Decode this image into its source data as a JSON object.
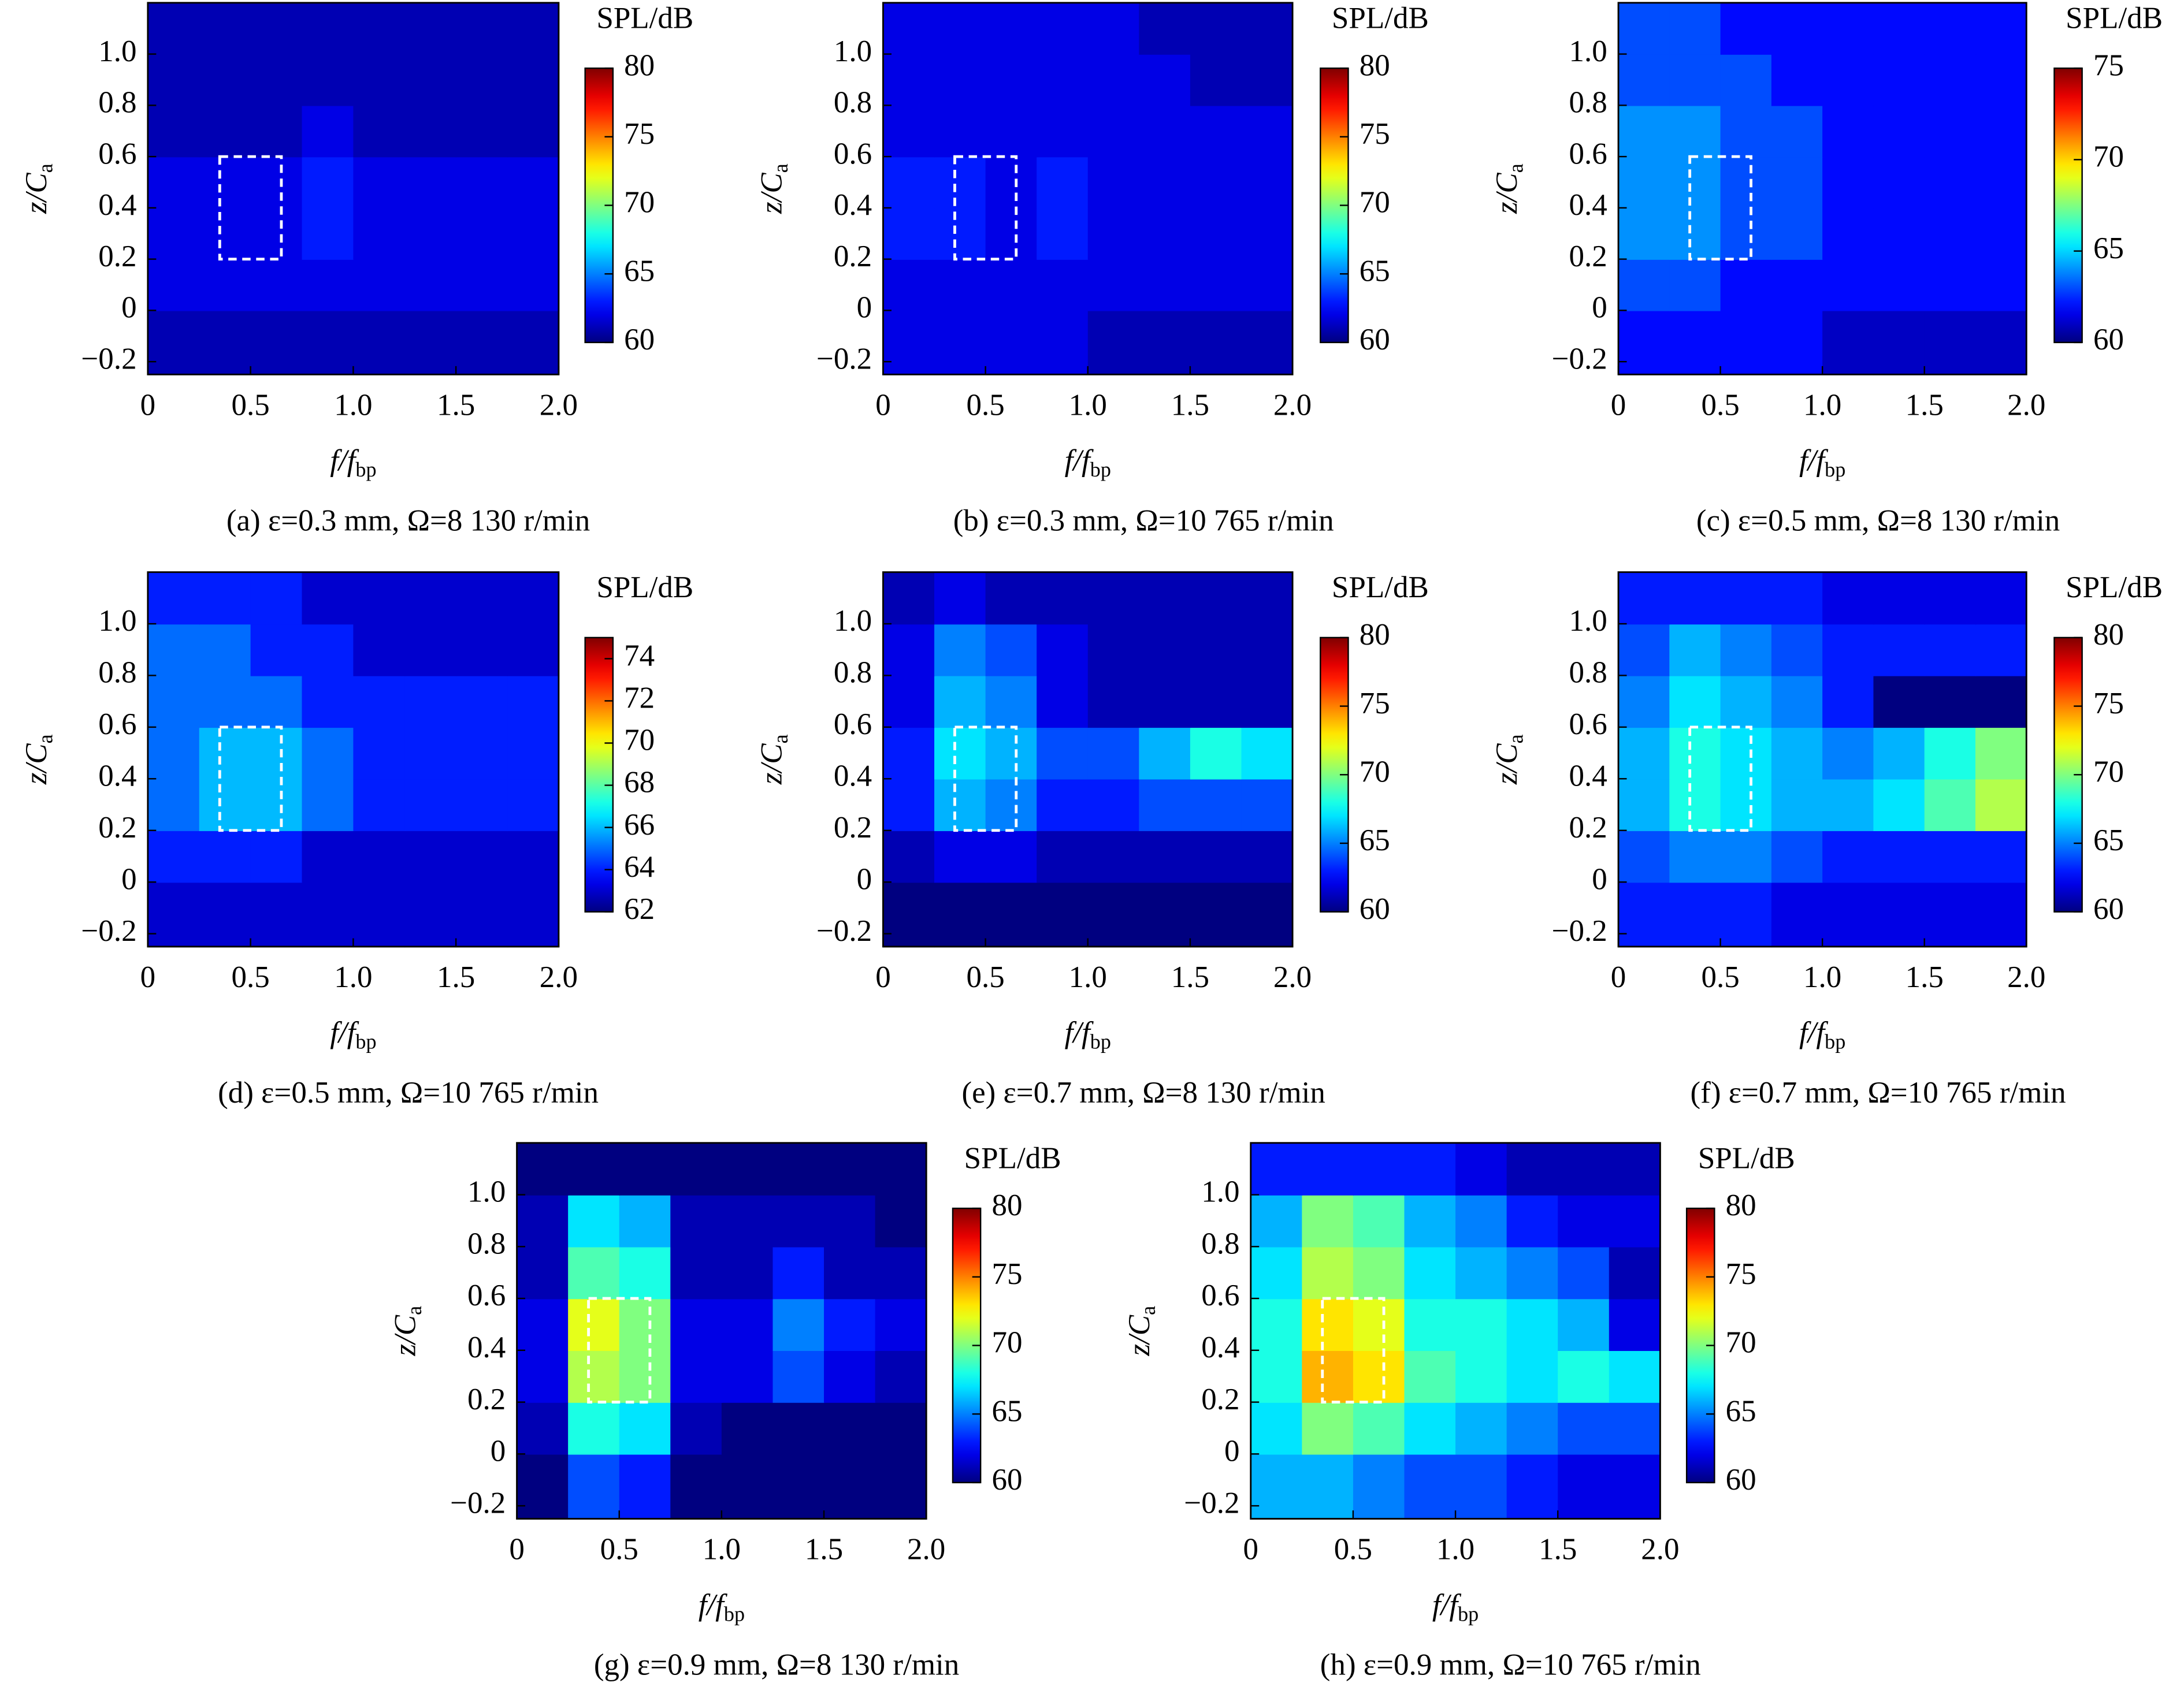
{
  "chart_data": [
    {
      "type": "heatmap",
      "caption": "(a) ε=0.3 mm, Ω=8 130 r/min",
      "colorbar_title": "SPL/dB",
      "xlabel": {
        "main": "f/f",
        "sub": "bp"
      },
      "ylabel": {
        "main": "z/C",
        "sub": "a"
      },
      "xlim": [
        0,
        2
      ],
      "ylim": [
        -0.25,
        1.2
      ],
      "xticks": [
        0,
        0.5,
        {
          "value": 1,
          "label": "1.0"
        },
        1.5,
        {
          "value": 2,
          "label": "2.0"
        }
      ],
      "yticks": [
        {
          "value": -0.2,
          "label": "−0.2"
        },
        0,
        0.2,
        0.4,
        0.6,
        0.8,
        {
          "value": 1,
          "label": "1.0"
        }
      ],
      "clim": [
        60,
        80
      ],
      "cticks": [
        60,
        65,
        70,
        75,
        80
      ],
      "colormap": "jet",
      "highlight": {
        "x": [
          0.35,
          0.65
        ],
        "y": [
          0.2,
          0.6
        ]
      },
      "x": [
        0.125,
        0.375,
        0.625,
        0.875,
        1.125,
        1.375,
        1.625,
        1.875
      ],
      "z": [
        -0.1,
        0.1,
        0.3,
        0.5,
        0.7,
        0.9,
        1.1
      ],
      "values": [
        [
          61,
          61,
          61,
          61,
          61,
          61,
          61,
          61
        ],
        [
          62,
          62,
          62,
          62,
          62,
          62,
          62,
          62
        ],
        [
          62,
          62,
          62,
          63,
          62,
          62,
          62,
          62
        ],
        [
          62,
          62,
          62,
          63,
          62,
          62,
          62,
          62
        ],
        [
          61,
          61,
          61,
          62,
          61,
          61,
          61,
          61
        ],
        [
          61,
          61,
          61,
          61,
          61,
          61,
          61,
          61
        ],
        [
          61,
          61,
          61,
          61,
          61,
          61,
          61,
          61
        ]
      ]
    },
    {
      "type": "heatmap",
      "caption": "(b) ε=0.3 mm, Ω=10 765 r/min",
      "colorbar_title": "SPL/dB",
      "xlabel": {
        "main": "f/f",
        "sub": "bp"
      },
      "ylabel": {
        "main": "z/C",
        "sub": "a"
      },
      "xlim": [
        0,
        2
      ],
      "ylim": [
        -0.25,
        1.2
      ],
      "xticks": [
        0,
        0.5,
        {
          "value": 1,
          "label": "1.0"
        },
        1.5,
        {
          "value": 2,
          "label": "2.0"
        }
      ],
      "yticks": [
        {
          "value": -0.2,
          "label": "−0.2"
        },
        0,
        0.2,
        0.4,
        0.6,
        0.8,
        {
          "value": 1,
          "label": "1.0"
        }
      ],
      "clim": [
        60,
        80
      ],
      "cticks": [
        60,
        65,
        70,
        75,
        80
      ],
      "colormap": "jet",
      "highlight": {
        "x": [
          0.35,
          0.65
        ],
        "y": [
          0.2,
          0.6
        ]
      },
      "x": [
        0.125,
        0.375,
        0.625,
        0.875,
        1.125,
        1.375,
        1.625,
        1.875
      ],
      "z": [
        -0.1,
        0.1,
        0.3,
        0.5,
        0.7,
        0.9,
        1.1
      ],
      "values": [
        [
          62,
          62,
          62,
          62,
          61,
          61,
          61,
          61
        ],
        [
          62,
          62,
          62,
          62,
          62,
          62,
          62,
          62
        ],
        [
          63,
          63,
          62,
          63,
          62,
          62,
          62,
          62
        ],
        [
          63,
          63,
          62,
          63,
          62,
          62,
          62,
          62
        ],
        [
          62,
          62,
          62,
          62,
          62,
          62,
          62,
          62
        ],
        [
          62,
          62,
          62,
          62,
          62,
          62,
          61,
          61
        ],
        [
          62,
          62,
          62,
          62,
          62,
          61,
          61,
          61
        ]
      ]
    },
    {
      "type": "heatmap",
      "caption": "(c) ε=0.5 mm, Ω=8 130 r/min",
      "colorbar_title": "SPL/dB",
      "xlabel": {
        "main": "f/f",
        "sub": "bp"
      },
      "ylabel": {
        "main": "z/C",
        "sub": "a"
      },
      "xlim": [
        0,
        2
      ],
      "ylim": [
        -0.25,
        1.2
      ],
      "xticks": [
        0,
        0.5,
        {
          "value": 1,
          "label": "1.0"
        },
        1.5,
        {
          "value": 2,
          "label": "2.0"
        }
      ],
      "yticks": [
        {
          "value": -0.2,
          "label": "−0.2"
        },
        0,
        0.2,
        0.4,
        0.6,
        0.8,
        {
          "value": 1,
          "label": "1.0"
        }
      ],
      "clim": [
        60,
        75
      ],
      "cticks": [
        60,
        65,
        70,
        75
      ],
      "colormap": "jet",
      "highlight": {
        "x": [
          0.35,
          0.65
        ],
        "y": [
          0.2,
          0.6
        ]
      },
      "x": [
        0.125,
        0.375,
        0.625,
        0.875,
        1.125,
        1.375,
        1.625,
        1.875
      ],
      "z": [
        -0.1,
        0.1,
        0.3,
        0.5,
        0.7,
        0.9,
        1.1
      ],
      "values": [
        [
          62,
          62,
          62,
          62,
          61,
          61,
          61,
          61
        ],
        [
          63,
          63,
          62,
          62,
          62,
          62,
          62,
          62
        ],
        [
          64,
          64,
          63,
          63,
          62,
          62,
          62,
          62
        ],
        [
          64,
          64,
          63,
          63,
          62,
          62,
          62,
          62
        ],
        [
          64,
          64,
          63,
          63,
          62,
          62,
          62,
          62
        ],
        [
          63,
          63,
          63,
          62,
          62,
          62,
          62,
          62
        ],
        [
          63,
          63,
          62,
          62,
          62,
          62,
          62,
          62
        ]
      ]
    },
    {
      "type": "heatmap",
      "caption": "(d) ε=0.5 mm, Ω=10 765 r/min",
      "colorbar_title": "SPL/dB",
      "xlabel": {
        "main": "f/f",
        "sub": "bp"
      },
      "ylabel": {
        "main": "z/C",
        "sub": "a"
      },
      "xlim": [
        0,
        2
      ],
      "ylim": [
        -0.25,
        1.2
      ],
      "xticks": [
        0,
        0.5,
        {
          "value": 1,
          "label": "1.0"
        },
        1.5,
        {
          "value": 2,
          "label": "2.0"
        }
      ],
      "yticks": [
        {
          "value": -0.2,
          "label": "−0.2"
        },
        0,
        0.2,
        0.4,
        0.6,
        0.8,
        {
          "value": 1,
          "label": "1.0"
        }
      ],
      "clim": [
        62,
        75
      ],
      "cticks": [
        62,
        64,
        66,
        68,
        70,
        72,
        74
      ],
      "colormap": "jet",
      "highlight": {
        "x": [
          0.35,
          0.65
        ],
        "y": [
          0.2,
          0.6
        ]
      },
      "x": [
        0.125,
        0.375,
        0.625,
        0.875,
        1.125,
        1.375,
        1.625,
        1.875
      ],
      "z": [
        -0.1,
        0.1,
        0.3,
        0.5,
        0.7,
        0.9,
        1.1
      ],
      "values": [
        [
          63,
          63,
          63,
          63,
          63,
          63,
          63,
          63
        ],
        [
          64,
          64,
          64,
          63,
          63,
          63,
          63,
          63
        ],
        [
          65,
          66,
          66,
          65,
          64,
          64,
          64,
          64
        ],
        [
          65,
          66,
          66,
          65,
          64,
          64,
          64,
          64
        ],
        [
          65,
          65,
          65,
          64,
          64,
          64,
          64,
          64
        ],
        [
          65,
          65,
          64,
          64,
          63,
          63,
          63,
          63
        ],
        [
          64,
          64,
          64,
          63,
          63,
          63,
          63,
          63
        ]
      ]
    },
    {
      "type": "heatmap",
      "caption": "(e) ε=0.7 mm, Ω=8 130 r/min",
      "colorbar_title": "SPL/dB",
      "xlabel": {
        "main": "f/f",
        "sub": "bp"
      },
      "ylabel": {
        "main": "z/C",
        "sub": "a"
      },
      "xlim": [
        0,
        2
      ],
      "ylim": [
        -0.25,
        1.2
      ],
      "xticks": [
        0,
        0.5,
        {
          "value": 1,
          "label": "1.0"
        },
        1.5,
        {
          "value": 2,
          "label": "2.0"
        }
      ],
      "yticks": [
        {
          "value": -0.2,
          "label": "−0.2"
        },
        0,
        0.2,
        0.4,
        0.6,
        0.8,
        {
          "value": 1,
          "label": "1.0"
        }
      ],
      "clim": [
        60,
        80
      ],
      "cticks": [
        60,
        65,
        70,
        75,
        80
      ],
      "colormap": "jet",
      "highlight": {
        "x": [
          0.35,
          0.65
        ],
        "y": [
          0.2,
          0.6
        ]
      },
      "x": [
        0.125,
        0.375,
        0.625,
        0.875,
        1.125,
        1.375,
        1.625,
        1.875
      ],
      "z": [
        -0.1,
        0.1,
        0.3,
        0.5,
        0.7,
        0.9,
        1.1
      ],
      "values": [
        [
          60,
          60,
          60,
          60,
          60,
          60,
          60,
          60
        ],
        [
          61,
          62,
          62,
          61,
          61,
          61,
          61,
          61
        ],
        [
          63,
          66,
          65,
          63,
          63,
          64,
          64,
          64
        ],
        [
          63,
          67,
          66,
          64,
          64,
          66,
          68,
          67
        ],
        [
          62,
          66,
          65,
          62,
          61,
          61,
          61,
          61
        ],
        [
          62,
          65,
          64,
          62,
          61,
          61,
          61,
          61
        ],
        [
          61,
          62,
          61,
          61,
          61,
          61,
          61,
          61
        ]
      ]
    },
    {
      "type": "heatmap",
      "caption": "(f) ε=0.7 mm, Ω=10 765 r/min",
      "colorbar_title": "SPL/dB",
      "xlabel": {
        "main": "f/f",
        "sub": "bp"
      },
      "ylabel": {
        "main": "z/C",
        "sub": "a"
      },
      "xlim": [
        0,
        2
      ],
      "ylim": [
        -0.25,
        1.2
      ],
      "xticks": [
        0,
        0.5,
        {
          "value": 1,
          "label": "1.0"
        },
        1.5,
        {
          "value": 2,
          "label": "2.0"
        }
      ],
      "yticks": [
        {
          "value": -0.2,
          "label": "−0.2"
        },
        0,
        0.2,
        0.4,
        0.6,
        0.8,
        {
          "value": 1,
          "label": "1.0"
        }
      ],
      "clim": [
        60,
        80
      ],
      "cticks": [
        60,
        65,
        70,
        75,
        80
      ],
      "colormap": "jet",
      "highlight": {
        "x": [
          0.35,
          0.65
        ],
        "y": [
          0.2,
          0.6
        ]
      },
      "x": [
        0.125,
        0.375,
        0.625,
        0.875,
        1.125,
        1.375,
        1.625,
        1.875
      ],
      "z": [
        -0.1,
        0.1,
        0.3,
        0.5,
        0.7,
        0.9,
        1.1
      ],
      "values": [
        [
          63,
          63,
          63,
          62,
          62,
          62,
          62,
          62
        ],
        [
          64,
          65,
          65,
          64,
          63,
          63,
          63,
          63
        ],
        [
          66,
          68,
          67,
          66,
          66,
          67,
          69,
          71
        ],
        [
          66,
          68,
          67,
          66,
          65,
          66,
          68,
          70
        ],
        [
          65,
          67,
          66,
          65,
          63,
          60,
          60,
          60
        ],
        [
          64,
          66,
          65,
          64,
          63,
          63,
          63,
          63
        ],
        [
          63,
          63,
          63,
          63,
          62,
          62,
          62,
          62
        ]
      ]
    },
    {
      "type": "heatmap",
      "caption": "(g) ε=0.9 mm, Ω=8 130 r/min",
      "colorbar_title": "SPL/dB",
      "xlabel": {
        "main": "f/f",
        "sub": "bp"
      },
      "ylabel": {
        "main": "z/C",
        "sub": "a"
      },
      "xlim": [
        0,
        2
      ],
      "ylim": [
        -0.25,
        1.2
      ],
      "xticks": [
        0,
        0.5,
        {
          "value": 1,
          "label": "1.0"
        },
        1.5,
        {
          "value": 2,
          "label": "2.0"
        }
      ],
      "yticks": [
        {
          "value": -0.2,
          "label": "−0.2"
        },
        0,
        0.2,
        0.4,
        0.6,
        0.8,
        {
          "value": 1,
          "label": "1.0"
        }
      ],
      "clim": [
        60,
        80
      ],
      "cticks": [
        60,
        65,
        70,
        75,
        80
      ],
      "colormap": "jet",
      "highlight": {
        "x": [
          0.35,
          0.65
        ],
        "y": [
          0.2,
          0.6
        ]
      },
      "x": [
        0.125,
        0.375,
        0.625,
        0.875,
        1.125,
        1.375,
        1.625,
        1.875
      ],
      "z": [
        -0.1,
        0.1,
        0.3,
        0.5,
        0.7,
        0.9,
        1.1
      ],
      "values": [
        [
          60,
          64,
          63,
          60,
          60,
          60,
          60,
          60
        ],
        [
          61,
          68,
          67,
          61,
          60,
          60,
          60,
          60
        ],
        [
          62,
          71,
          70,
          62,
          62,
          64,
          62,
          61
        ],
        [
          62,
          72,
          70,
          62,
          62,
          65,
          63,
          62
        ],
        [
          61,
          69,
          68,
          61,
          61,
          63,
          61,
          61
        ],
        [
          61,
          67,
          66,
          61,
          61,
          61,
          61,
          60
        ],
        [
          60,
          60,
          60,
          60,
          60,
          60,
          60,
          60
        ]
      ]
    },
    {
      "type": "heatmap",
      "caption": "(h) ε=0.9 mm, Ω=10 765 r/min",
      "colorbar_title": "SPL/dB",
      "xlabel": {
        "main": "f/f",
        "sub": "bp"
      },
      "ylabel": {
        "main": "z/C",
        "sub": "a"
      },
      "xlim": [
        0,
        2
      ],
      "ylim": [
        -0.25,
        1.2
      ],
      "xticks": [
        0,
        0.5,
        {
          "value": 1,
          "label": "1.0"
        },
        1.5,
        {
          "value": 2,
          "label": "2.0"
        }
      ],
      "yticks": [
        {
          "value": -0.2,
          "label": "−0.2"
        },
        0,
        0.2,
        0.4,
        0.6,
        0.8,
        {
          "value": 1,
          "label": "1.0"
        }
      ],
      "clim": [
        60,
        80
      ],
      "cticks": [
        60,
        65,
        70,
        75,
        80
      ],
      "colormap": "jet",
      "highlight": {
        "x": [
          0.35,
          0.65
        ],
        "y": [
          0.2,
          0.6
        ]
      },
      "x": [
        0.125,
        0.375,
        0.625,
        0.875,
        1.125,
        1.375,
        1.625,
        1.875
      ],
      "z": [
        -0.1,
        0.1,
        0.3,
        0.5,
        0.7,
        0.9,
        1.1
      ],
      "values": [
        [
          66,
          66,
          65,
          64,
          64,
          63,
          62,
          62
        ],
        [
          67,
          70,
          69,
          67,
          66,
          65,
          64,
          64
        ],
        [
          68,
          74,
          73,
          69,
          68,
          67,
          68,
          67
        ],
        [
          68,
          73,
          72,
          68,
          68,
          67,
          66,
          62
        ],
        [
          67,
          71,
          70,
          67,
          66,
          65,
          64,
          61
        ],
        [
          66,
          70,
          69,
          66,
          65,
          63,
          62,
          62
        ],
        [
          63,
          63,
          63,
          63,
          62,
          61,
          61,
          61
        ]
      ]
    }
  ]
}
